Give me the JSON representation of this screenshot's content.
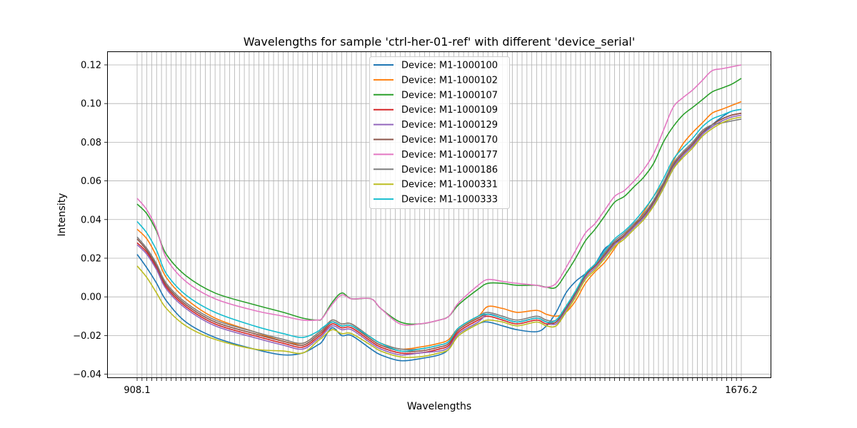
{
  "chart_data": {
    "type": "line",
    "title": "Wavelengths for sample 'ctrl-her-01-ref' with different 'device_serial'",
    "xlabel": "Wavelengths",
    "ylabel": "Intensity",
    "ylim": [
      -0.042,
      0.127
    ],
    "yticks": [
      -0.04,
      -0.02,
      0.0,
      0.02,
      0.04,
      0.06,
      0.08,
      0.1,
      0.12
    ],
    "ytick_labels": [
      "−0.04",
      "−0.02",
      "0.00",
      "0.02",
      "0.04",
      "0.06",
      "0.08",
      "0.10",
      "0.12"
    ],
    "x_first_label": "908.1",
    "x_last_label": "1676.2",
    "x_count": 125,
    "grid": true,
    "legend_position": "upper center",
    "anchor_x": [
      0,
      2,
      4,
      6,
      10,
      16,
      24,
      30,
      34,
      37,
      38,
      40,
      42,
      44,
      48,
      50,
      54,
      58,
      62,
      64,
      66,
      70,
      72,
      75,
      78,
      82,
      84,
      86,
      88,
      90,
      92,
      94,
      96,
      98,
      100,
      102,
      104,
      106,
      108,
      110,
      112,
      114,
      116,
      118,
      120,
      122,
      124
    ],
    "series": [
      {
        "name": "Device: M1-1000100",
        "color": "#1f77b4",
        "values": [
          0.022,
          0.015,
          0.007,
          -0.002,
          -0.013,
          -0.021,
          -0.027,
          -0.03,
          -0.029,
          -0.025,
          -0.023,
          -0.016,
          -0.02,
          -0.02,
          -0.027,
          -0.03,
          -0.033,
          -0.032,
          -0.03,
          -0.027,
          -0.02,
          -0.014,
          -0.013,
          -0.015,
          -0.017,
          -0.018,
          -0.015,
          -0.008,
          0.002,
          0.008,
          0.012,
          0.017,
          0.025,
          0.028,
          0.031,
          0.036,
          0.041,
          0.047,
          0.056,
          0.066,
          0.073,
          0.078,
          0.084,
          0.089,
          0.093,
          0.096,
          0.097
        ]
      },
      {
        "name": "Device: M1-1000102",
        "color": "#ff7f0e",
        "values": [
          0.035,
          0.03,
          0.021,
          0.01,
          -0.001,
          -0.011,
          -0.018,
          -0.023,
          -0.024,
          -0.019,
          -0.017,
          -0.012,
          -0.014,
          -0.014,
          -0.021,
          -0.024,
          -0.027,
          -0.026,
          -0.024,
          -0.022,
          -0.016,
          -0.01,
          -0.005,
          -0.006,
          -0.008,
          -0.007,
          -0.009,
          -0.01,
          -0.008,
          -0.002,
          0.007,
          0.013,
          0.018,
          0.025,
          0.032,
          0.037,
          0.044,
          0.052,
          0.059,
          0.07,
          0.079,
          0.085,
          0.09,
          0.095,
          0.097,
          0.099,
          0.101
        ]
      },
      {
        "name": "Device: M1-1000107",
        "color": "#2ca02c",
        "values": [
          0.048,
          0.043,
          0.034,
          0.022,
          0.011,
          0.002,
          -0.004,
          -0.008,
          -0.011,
          -0.012,
          -0.011,
          -0.003,
          0.002,
          -0.001,
          -0.001,
          -0.006,
          -0.013,
          -0.014,
          -0.012,
          -0.01,
          -0.004,
          0.004,
          0.007,
          0.007,
          0.006,
          0.006,
          0.005,
          0.005,
          0.012,
          0.02,
          0.029,
          0.035,
          0.042,
          0.049,
          0.052,
          0.057,
          0.062,
          0.069,
          0.08,
          0.088,
          0.094,
          0.098,
          0.102,
          0.106,
          0.108,
          0.11,
          0.113
        ]
      },
      {
        "name": "Device: M1-1000109",
        "color": "#d62728",
        "values": [
          0.028,
          0.023,
          0.015,
          0.005,
          -0.005,
          -0.014,
          -0.02,
          -0.024,
          -0.026,
          -0.021,
          -0.019,
          -0.014,
          -0.016,
          -0.016,
          -0.023,
          -0.026,
          -0.029,
          -0.029,
          -0.027,
          -0.025,
          -0.018,
          -0.012,
          -0.01,
          -0.012,
          -0.014,
          -0.012,
          -0.014,
          -0.013,
          -0.006,
          0.002,
          0.011,
          0.016,
          0.022,
          0.028,
          0.032,
          0.037,
          0.042,
          0.049,
          0.058,
          0.068,
          0.074,
          0.079,
          0.085,
          0.089,
          0.092,
          0.094,
          0.095
        ]
      },
      {
        "name": "Device: M1-1000129",
        "color": "#9467bd",
        "values": [
          0.027,
          0.022,
          0.014,
          0.004,
          -0.006,
          -0.015,
          -0.021,
          -0.025,
          -0.027,
          -0.022,
          -0.02,
          -0.015,
          -0.017,
          -0.017,
          -0.024,
          -0.027,
          -0.03,
          -0.029,
          -0.028,
          -0.026,
          -0.019,
          -0.013,
          -0.009,
          -0.011,
          -0.013,
          -0.011,
          -0.013,
          -0.014,
          -0.007,
          0.001,
          0.01,
          0.015,
          0.021,
          0.027,
          0.031,
          0.036,
          0.041,
          0.048,
          0.057,
          0.067,
          0.073,
          0.078,
          0.084,
          0.088,
          0.091,
          0.093,
          0.094
        ]
      },
      {
        "name": "Device: M1-1000170",
        "color": "#8c564b",
        "values": [
          0.03,
          0.024,
          0.016,
          0.006,
          -0.004,
          -0.013,
          -0.019,
          -0.023,
          -0.025,
          -0.02,
          -0.018,
          -0.013,
          -0.015,
          -0.015,
          -0.022,
          -0.025,
          -0.028,
          -0.028,
          -0.026,
          -0.024,
          -0.017,
          -0.011,
          -0.009,
          -0.011,
          -0.013,
          -0.011,
          -0.013,
          -0.013,
          -0.006,
          0.002,
          0.011,
          0.016,
          0.022,
          0.028,
          0.032,
          0.037,
          0.042,
          0.049,
          0.058,
          0.068,
          0.074,
          0.079,
          0.085,
          0.089,
          0.092,
          0.094,
          0.095
        ]
      },
      {
        "name": "Device: M1-1000177",
        "color": "#e377c2",
        "values": [
          0.051,
          0.045,
          0.035,
          0.02,
          0.008,
          -0.001,
          -0.007,
          -0.01,
          -0.012,
          -0.012,
          -0.011,
          -0.004,
          0.001,
          -0.001,
          -0.001,
          -0.006,
          -0.014,
          -0.014,
          -0.012,
          -0.01,
          -0.003,
          0.006,
          0.009,
          0.008,
          0.007,
          0.006,
          0.005,
          0.007,
          0.015,
          0.024,
          0.033,
          0.038,
          0.045,
          0.052,
          0.055,
          0.06,
          0.066,
          0.074,
          0.086,
          0.098,
          0.103,
          0.107,
          0.112,
          0.117,
          0.118,
          0.119,
          0.12
        ]
      },
      {
        "name": "Device: M1-1000186",
        "color": "#7f7f7f",
        "values": [
          0.031,
          0.025,
          0.017,
          0.007,
          -0.003,
          -0.012,
          -0.018,
          -0.022,
          -0.024,
          -0.019,
          -0.017,
          -0.012,
          -0.014,
          -0.014,
          -0.021,
          -0.024,
          -0.027,
          -0.027,
          -0.025,
          -0.023,
          -0.016,
          -0.01,
          -0.008,
          -0.01,
          -0.012,
          -0.01,
          -0.012,
          -0.012,
          -0.005,
          0.003,
          0.012,
          0.017,
          0.023,
          0.029,
          0.033,
          0.038,
          0.043,
          0.05,
          0.059,
          0.069,
          0.075,
          0.08,
          0.086,
          0.089,
          0.09,
          0.091,
          0.092
        ]
      },
      {
        "name": "Device: M1-1000331",
        "color": "#bcbd22",
        "values": [
          0.016,
          0.01,
          0.002,
          -0.006,
          -0.015,
          -0.022,
          -0.027,
          -0.028,
          -0.029,
          -0.023,
          -0.021,
          -0.017,
          -0.019,
          -0.019,
          -0.025,
          -0.028,
          -0.031,
          -0.031,
          -0.029,
          -0.027,
          -0.02,
          -0.014,
          -0.012,
          -0.013,
          -0.015,
          -0.013,
          -0.015,
          -0.015,
          -0.008,
          0.0,
          0.009,
          0.014,
          0.02,
          0.026,
          0.03,
          0.035,
          0.04,
          0.047,
          0.056,
          0.066,
          0.072,
          0.077,
          0.083,
          0.087,
          0.09,
          0.092,
          0.093
        ]
      },
      {
        "name": "Device: M1-1000333",
        "color": "#17becf",
        "values": [
          0.039,
          0.033,
          0.024,
          0.012,
          0.001,
          -0.008,
          -0.015,
          -0.019,
          -0.021,
          -0.018,
          -0.016,
          -0.013,
          -0.015,
          -0.015,
          -0.021,
          -0.024,
          -0.028,
          -0.027,
          -0.025,
          -0.023,
          -0.016,
          -0.01,
          -0.009,
          -0.011,
          -0.013,
          -0.011,
          -0.013,
          -0.012,
          -0.005,
          0.003,
          0.012,
          0.017,
          0.024,
          0.03,
          0.034,
          0.039,
          0.045,
          0.052,
          0.061,
          0.071,
          0.077,
          0.082,
          0.088,
          0.092,
          0.094,
          0.096,
          0.097
        ]
      }
    ]
  }
}
